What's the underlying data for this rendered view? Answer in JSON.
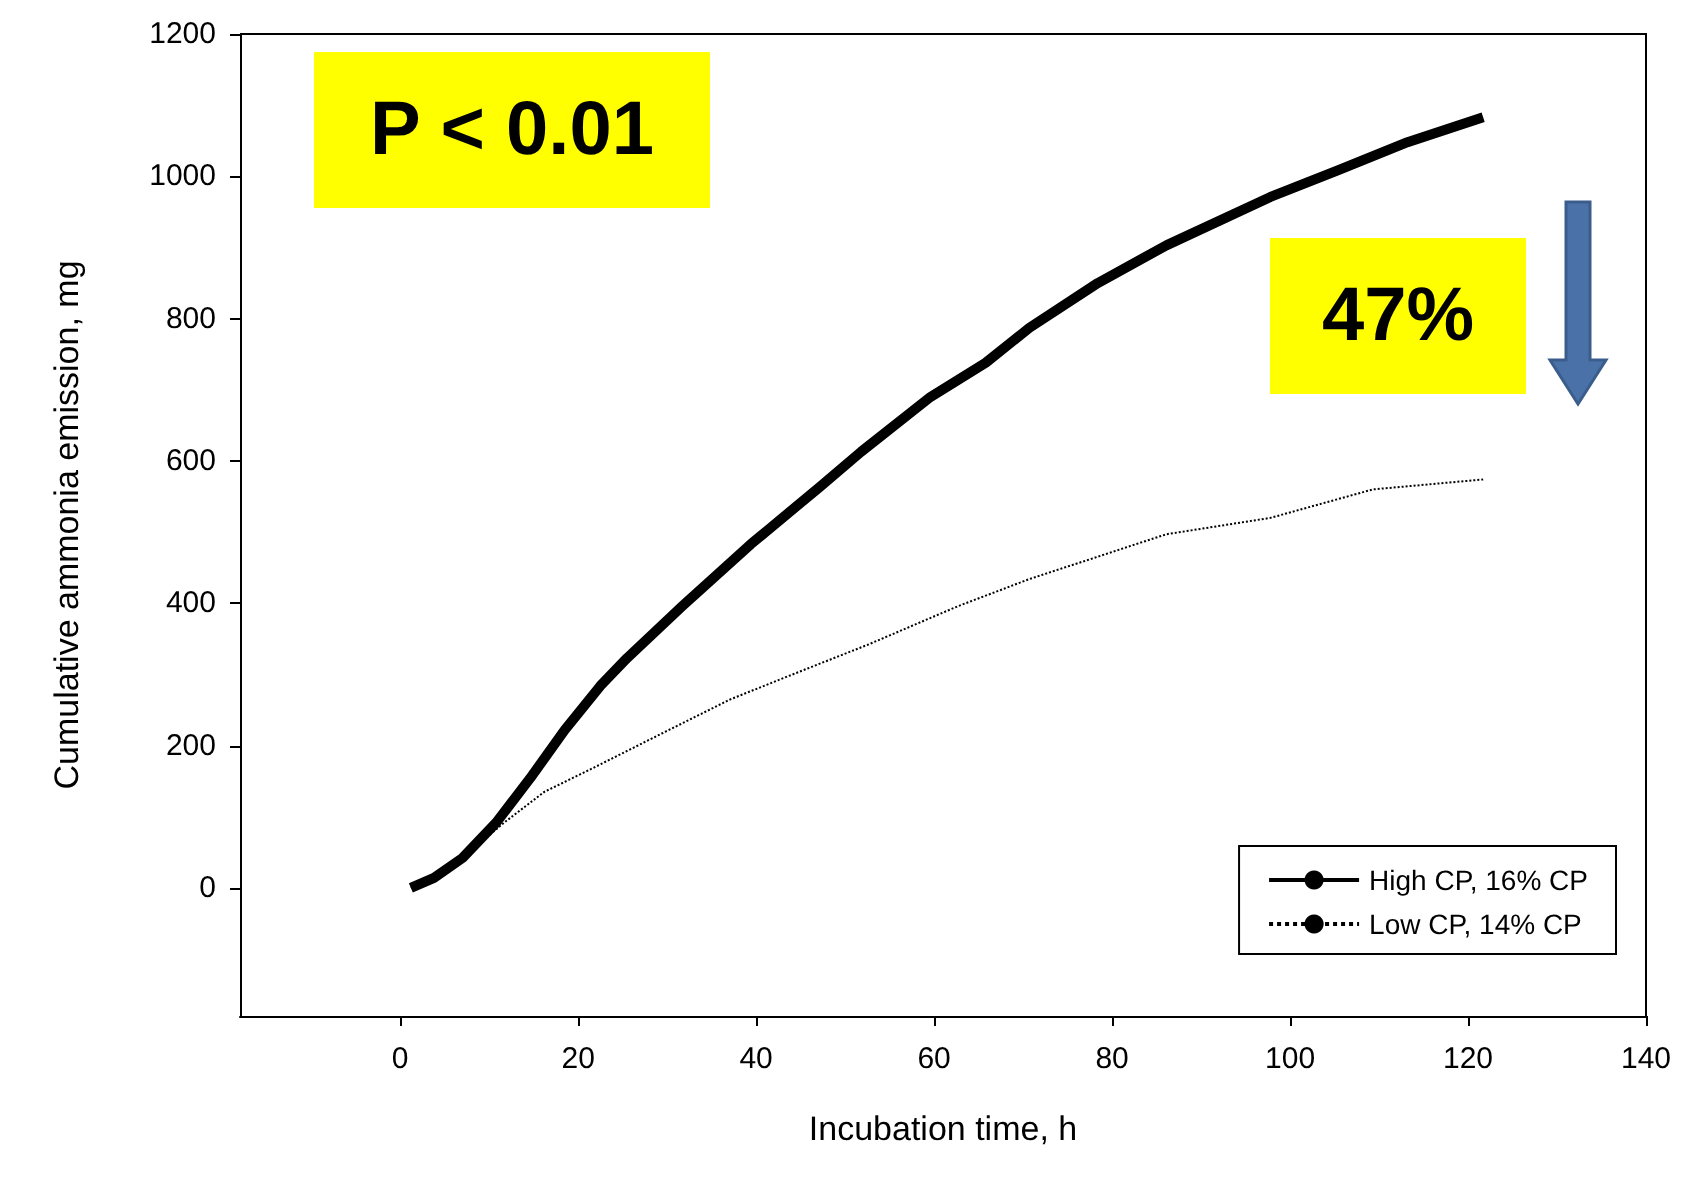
{
  "chart_data": {
    "type": "line",
    "xlabel": "Incubation time, h",
    "ylabel": "Cumulative ammonia emission, mg",
    "annotations": [
      "P < 0.01",
      "47%"
    ],
    "xlim": [
      -18,
      140
    ],
    "xticks": [
      0,
      20,
      40,
      60,
      80,
      100,
      120,
      140
    ],
    "ylim": [
      -180,
      1200
    ],
    "yticks": [
      0,
      200,
      400,
      600,
      800,
      1000,
      1200
    ],
    "grid": false,
    "legend": "bottom right",
    "marker": "none",
    "series": [
      {
        "name": "High CP, 16% CP",
        "color": "#000000",
        "line_style": "solid",
        "x": [
          1.2,
          3.8,
          7,
          10.8,
          14.6,
          18.5,
          22.5,
          25.5,
          31.7,
          39.4,
          47.2,
          51.8,
          59.6,
          65.8,
          70.7,
          78.4,
          86.1,
          97.8,
          105.5,
          113.2,
          121.7
        ],
        "values": [
          0,
          14,
          42,
          92,
          154,
          222,
          284,
          323,
          396,
          483,
          564,
          613,
          690,
          738,
          787,
          850,
          903,
          971,
          1009,
          1048,
          1083
        ]
      },
      {
        "name": "Low CP, 14% CP",
        "color": "#000000",
        "line_style": "dotted",
        "x": [
          1.2,
          3.8,
          7,
          11.6,
          16.2,
          21.6,
          29.4,
          37.1,
          44.9,
          52.6,
          62.7,
          70.7,
          86.1,
          97.8,
          109.3,
          121.7
        ],
        "values": [
          0,
          14,
          42,
          91,
          135,
          168,
          217,
          265,
          304,
          342,
          396,
          434,
          497,
          520,
          560,
          574
        ]
      }
    ]
  }
}
